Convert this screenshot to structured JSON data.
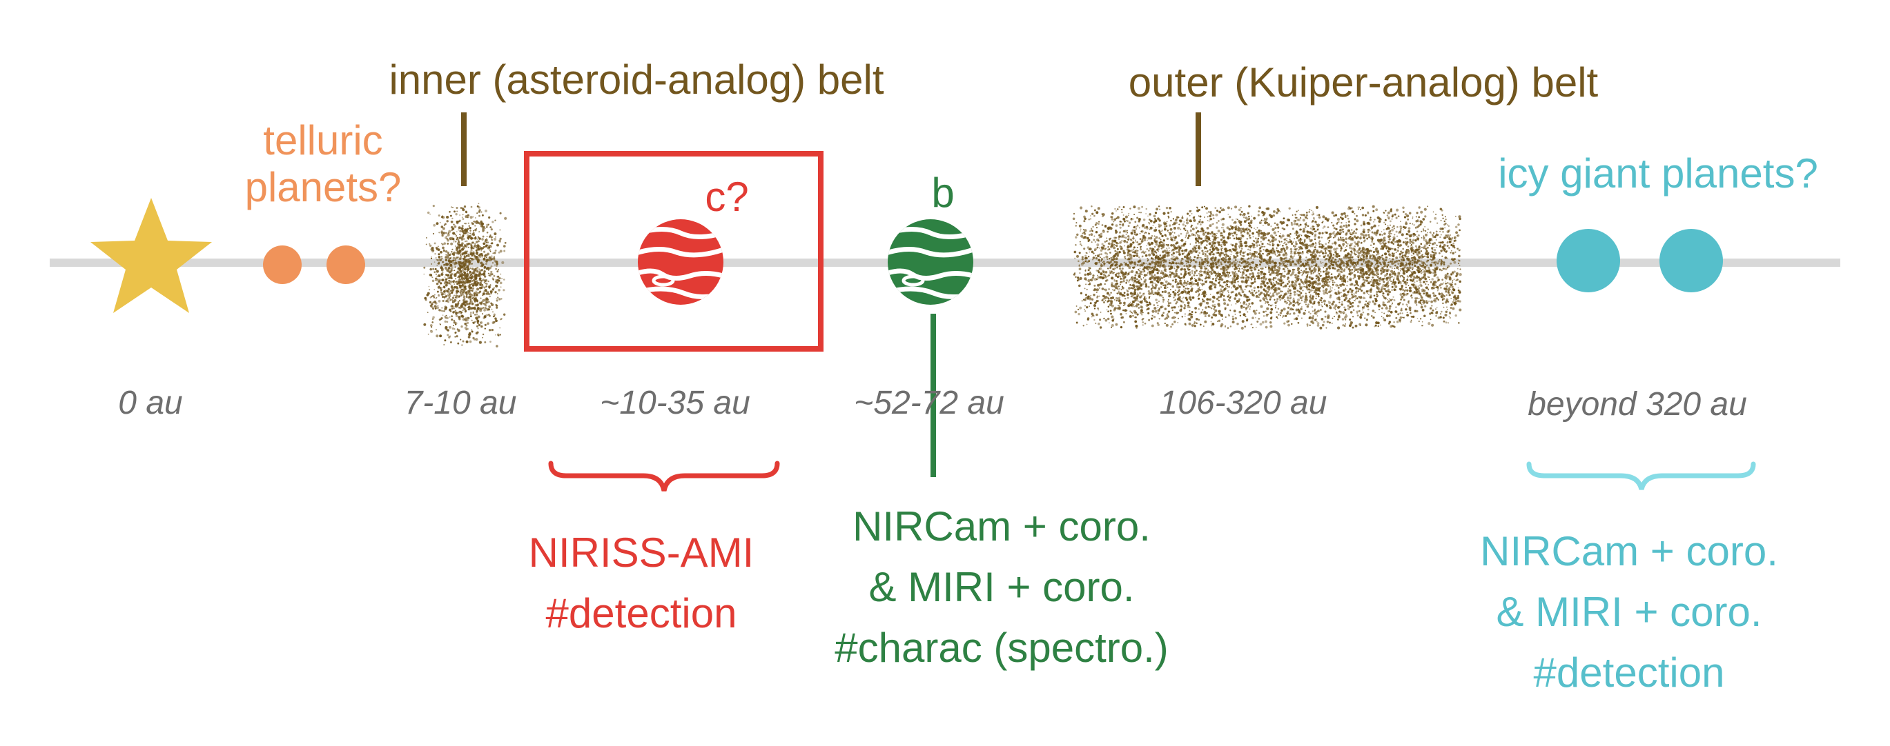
{
  "colors": {
    "axis": "#d8d8d8",
    "star": "#ebc24a",
    "telluric": "#f0935a",
    "belt": "#72561e",
    "red": "#e23b34",
    "green": "#2e8143",
    "cyan": "#56bfcb",
    "cyan_light": "#87dce6",
    "distance_label": "#6e6e6e"
  },
  "labels": {
    "inner_belt": "inner (asteroid-analog) belt",
    "outer_belt": "outer (Kuiper-analog) belt",
    "telluric_line1": "telluric",
    "telluric_line2": "planets?",
    "planet_c": "c?",
    "planet_b": "b",
    "icy_giants": "icy giant planets?"
  },
  "distances": {
    "star": "0 au",
    "inner_belt": "7-10 au",
    "planet_c": "~10-35 au",
    "planet_b": "~52-72 au",
    "outer_belt": "106-320 au",
    "icy": "beyond 320 au"
  },
  "instruments": {
    "niriss": {
      "line1": "NIRISS-AMI",
      "line2": "#detection"
    },
    "b": {
      "line1": "NIRCam + coro.",
      "line2": "& MIRI + coro.",
      "line3": "#charac (spectro.)"
    },
    "icy": {
      "line1": "NIRCam + coro.",
      "line2": "& MIRI + coro.",
      "line3": "#detection"
    }
  }
}
